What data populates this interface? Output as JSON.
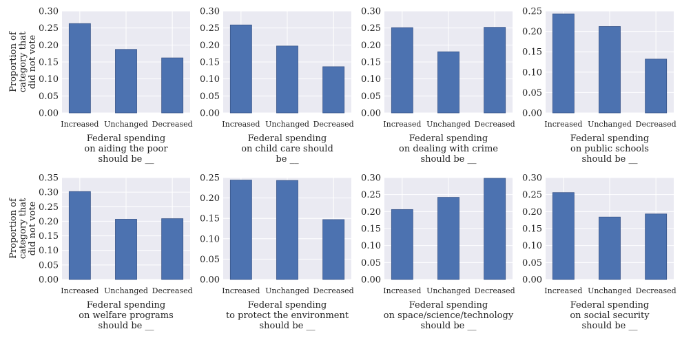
{
  "colors": {
    "bar": "#4c72b0",
    "bar_edge": "#3a568a",
    "panel_bg": "#eaeaf2",
    "grid": "#ffffff"
  },
  "chart_data": [
    {
      "type": "bar",
      "categories": [
        "Increased",
        "Unchanged",
        "Decreased"
      ],
      "values": [
        0.263,
        0.187,
        0.162
      ],
      "xlabel": [
        "Federal spending",
        "on aiding the poor",
        "should be __"
      ],
      "ylabel": [
        "Proportion of",
        "category that",
        "did not vote"
      ],
      "ylim": [
        0,
        0.3
      ],
      "yticks": [
        "0.00",
        "0.05",
        "0.10",
        "0.15",
        "0.20",
        "0.25",
        "0.30"
      ],
      "grid": true
    },
    {
      "type": "bar",
      "categories": [
        "Increased",
        "Unchanged",
        "Decreased"
      ],
      "values": [
        0.259,
        0.197,
        0.136
      ],
      "xlabel": [
        "Federal spending",
        "on child care should",
        "be __"
      ],
      "ylabel": [],
      "ylim": [
        0,
        0.3
      ],
      "yticks": [
        "0.00",
        "0.05",
        "0.10",
        "0.15",
        "0.20",
        "0.25",
        "0.30"
      ],
      "grid": true
    },
    {
      "type": "bar",
      "categories": [
        "Increased",
        "Unchanged",
        "Decreased"
      ],
      "values": [
        0.251,
        0.18,
        0.252
      ],
      "xlabel": [
        "Federal spending",
        "on dealing with crime",
        "should be __"
      ],
      "ylabel": [],
      "ylim": [
        0,
        0.3
      ],
      "yticks": [
        "0.00",
        "0.05",
        "0.10",
        "0.15",
        "0.20",
        "0.25",
        "0.30"
      ],
      "grid": true
    },
    {
      "type": "bar",
      "categories": [
        "Increased",
        "Unchanged",
        "Decreased"
      ],
      "values": [
        0.243,
        0.212,
        0.132
      ],
      "xlabel": [
        "Federal spending",
        "on public schools",
        "should be __"
      ],
      "ylabel": [],
      "ylim": [
        0,
        0.25
      ],
      "yticks": [
        "0.00",
        "0.05",
        "0.10",
        "0.15",
        "0.20",
        "0.25"
      ],
      "grid": true
    },
    {
      "type": "bar",
      "categories": [
        "Increased",
        "Unchanged",
        "Decreased"
      ],
      "values": [
        0.302,
        0.207,
        0.209
      ],
      "xlabel": [
        "Federal spending",
        "on welfare programs",
        "should be __"
      ],
      "ylabel": [
        "Proportion of",
        "category that",
        "did not vote"
      ],
      "ylim": [
        0,
        0.35
      ],
      "yticks": [
        "0.00",
        "0.05",
        "0.10",
        "0.15",
        "0.20",
        "0.25",
        "0.30",
        "0.35"
      ],
      "grid": true
    },
    {
      "type": "bar",
      "categories": [
        "Increased",
        "Unchanged",
        "Decreased"
      ],
      "values": [
        0.244,
        0.243,
        0.147
      ],
      "xlabel": [
        "Federal spending",
        "to protect the environment",
        "should be __"
      ],
      "ylabel": [],
      "ylim": [
        0,
        0.25
      ],
      "yticks": [
        "0.00",
        "0.05",
        "0.10",
        "0.15",
        "0.20",
        "0.25"
      ],
      "grid": true
    },
    {
      "type": "bar",
      "categories": [
        "Increased",
        "Unchanged",
        "Decreased"
      ],
      "values": [
        0.206,
        0.242,
        0.298
      ],
      "xlabel": [
        "Federal spending",
        "on space/science/technology",
        "should be __"
      ],
      "ylabel": [],
      "ylim": [
        0,
        0.3
      ],
      "yticks": [
        "0.00",
        "0.05",
        "0.10",
        "0.15",
        "0.20",
        "0.25",
        "0.30"
      ],
      "grid": true
    },
    {
      "type": "bar",
      "categories": [
        "Increased",
        "Unchanged",
        "Decreased"
      ],
      "values": [
        0.256,
        0.184,
        0.193
      ],
      "xlabel": [
        "Federal spending",
        "on social security",
        "should be __"
      ],
      "ylabel": [],
      "ylim": [
        0,
        0.3
      ],
      "yticks": [
        "0.00",
        "0.05",
        "0.10",
        "0.15",
        "0.20",
        "0.25",
        "0.30"
      ],
      "grid": true
    }
  ]
}
